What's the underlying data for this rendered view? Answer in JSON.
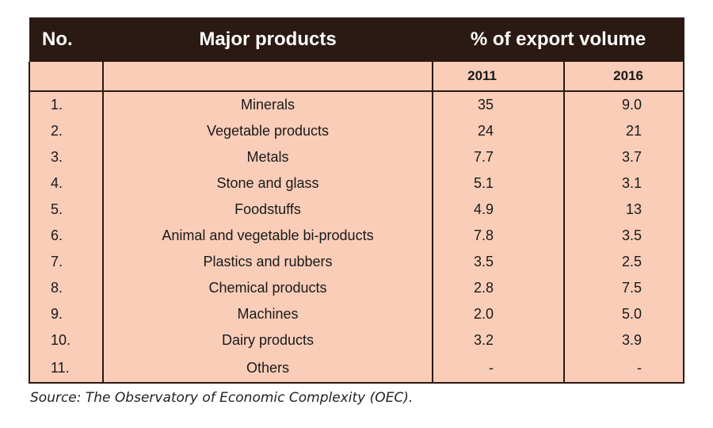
{
  "table": {
    "headers": {
      "no": "No.",
      "product": "Major products",
      "percent": "% of export volume"
    },
    "years": [
      "2011",
      "2016"
    ],
    "rows": [
      {
        "no": "1.",
        "product": "Minerals",
        "y2011": "35",
        "y2016": "9.0"
      },
      {
        "no": "2.",
        "product": "Vegetable products",
        "y2011": "24",
        "y2016": "21"
      },
      {
        "no": "3.",
        "product": "Metals",
        "y2011": "7.7",
        "y2016": "3.7"
      },
      {
        "no": "4.",
        "product": "Stone and glass",
        "y2011": "5.1",
        "y2016": "3.1"
      },
      {
        "no": "5.",
        "product": "Foodstuffs",
        "y2011": "4.9",
        "y2016": "13"
      },
      {
        "no": "6.",
        "product": "Animal and vegetable bi-products",
        "y2011": "7.8",
        "y2016": "3.5"
      },
      {
        "no": "7.",
        "product": "Plastics and rubbers",
        "y2011": "3.5",
        "y2016": "2.5"
      },
      {
        "no": "8.",
        "product": "Chemical products",
        "y2011": "2.8",
        "y2016": "7.5"
      },
      {
        "no": "9.",
        "product": "Machines",
        "y2011": "2.0",
        "y2016": "5.0"
      },
      {
        "no": "10.",
        "product": "Dairy products",
        "y2011": "3.2",
        "y2016": "3.9"
      },
      {
        "no": "11.",
        "product": "Others",
        "y2011": "-",
        "y2016": "-"
      }
    ]
  },
  "source": "Source: The Observatory of Economic Complexity (OEC).",
  "colors": {
    "header_bg": "#2b1a14",
    "body_bg": "#f9cdb8"
  }
}
